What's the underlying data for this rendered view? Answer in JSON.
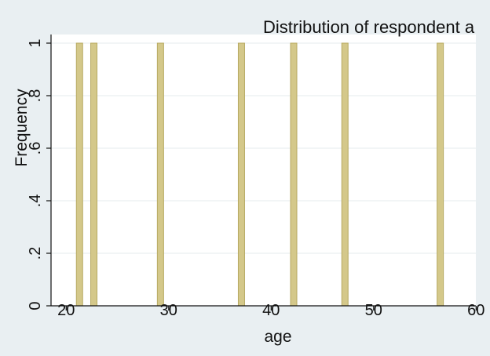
{
  "chart_data": {
    "type": "bar",
    "title": "Distribution of respondent a",
    "xlabel": "age",
    "ylabel": "Frequency",
    "x_ticks": [
      "20",
      "30",
      "40",
      "50",
      "60"
    ],
    "y_ticks": [
      "0",
      ".2",
      ".4",
      ".6",
      ".8",
      "1"
    ],
    "xlim": [
      18,
      60
    ],
    "ylim": [
      0,
      1
    ],
    "grid": true,
    "bars": [
      {
        "age": 21.3,
        "frequency": 1
      },
      {
        "age": 22.7,
        "frequency": 1
      },
      {
        "age": 29.2,
        "frequency": 1
      },
      {
        "age": 37.1,
        "frequency": 1
      },
      {
        "age": 42.2,
        "frequency": 1
      },
      {
        "age": 47.2,
        "frequency": 1
      },
      {
        "age": 56.5,
        "frequency": 1
      }
    ],
    "colors": {
      "background": "#e9eff2",
      "plot_background": "#ffffff",
      "bar_fill": "#d4c88a",
      "bar_edge": "#b7aa62",
      "grid": "#e6ebee",
      "axis": "#111111"
    }
  }
}
